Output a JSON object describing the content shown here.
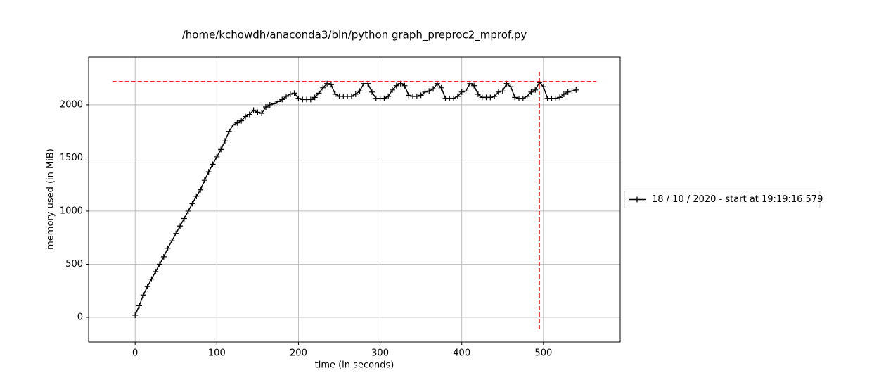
{
  "chart_data": {
    "type": "line",
    "title": "/home/kchowdh/anaconda3/bin/python graph_preproc2_mprof.py",
    "x_label": "time (in seconds)",
    "y_label": "memory used (in MiB)",
    "x": [
      0,
      5,
      10,
      15,
      20,
      25,
      30,
      35,
      40,
      45,
      50,
      55,
      60,
      65,
      70,
      75,
      80,
      85,
      90,
      95,
      100,
      105,
      110,
      115,
      120,
      125,
      130,
      135,
      140,
      145,
      150,
      155,
      160,
      165,
      170,
      175,
      180,
      185,
      190,
      195,
      200,
      205,
      210,
      215,
      220,
      225,
      230,
      235,
      240,
      245,
      250,
      255,
      260,
      265,
      270,
      275,
      280,
      285,
      290,
      295,
      300,
      305,
      310,
      315,
      320,
      325,
      330,
      335,
      340,
      345,
      350,
      355,
      360,
      365,
      370,
      375,
      380,
      385,
      390,
      395,
      400,
      405,
      410,
      415,
      420,
      425,
      430,
      435,
      440,
      445,
      450,
      455,
      460,
      465,
      470,
      475,
      480,
      485,
      490,
      495,
      500,
      505,
      510,
      515,
      520,
      525,
      530,
      535,
      540
    ],
    "series": [
      {
        "name": "18 / 10 / 2020 - start at 19:19:16.579",
        "color": "#000000",
        "values": [
          20,
          110,
          210,
          290,
          360,
          430,
          500,
          570,
          650,
          720,
          790,
          860,
          930,
          1000,
          1070,
          1140,
          1200,
          1290,
          1370,
          1440,
          1510,
          1580,
          1660,
          1750,
          1810,
          1830,
          1850,
          1890,
          1910,
          1950,
          1930,
          1920,
          1980,
          2000,
          2010,
          2030,
          2050,
          2080,
          2100,
          2110,
          2060,
          2050,
          2050,
          2050,
          2070,
          2110,
          2160,
          2200,
          2190,
          2100,
          2080,
          2080,
          2080,
          2080,
          2100,
          2130,
          2200,
          2200,
          2120,
          2060,
          2060,
          2060,
          2080,
          2140,
          2180,
          2200,
          2180,
          2090,
          2080,
          2080,
          2090,
          2120,
          2130,
          2150,
          2200,
          2160,
          2060,
          2060,
          2060,
          2080,
          2120,
          2130,
          2200,
          2180,
          2100,
          2070,
          2070,
          2070,
          2080,
          2120,
          2130,
          2200,
          2170,
          2070,
          2060,
          2060,
          2080,
          2120,
          2140,
          2210,
          2170,
          2060,
          2060,
          2060,
          2070,
          2100,
          2120,
          2130,
          2140
        ]
      }
    ],
    "hlines": [
      {
        "y": 2219,
        "xmin": -28,
        "xmax": 565,
        "color": "#ff0000"
      }
    ],
    "vlines": [
      {
        "x": 495,
        "ymin": -113,
        "ymax": 2330,
        "color": "#ff0000"
      }
    ],
    "xlim": [
      -57,
      594
    ],
    "ylim": [
      -232,
      2450
    ],
    "xticks": [
      0,
      100,
      200,
      300,
      400,
      500
    ],
    "yticks": [
      0,
      500,
      1000,
      1500,
      2000
    ],
    "grid": true,
    "legend": "right-outside"
  }
}
